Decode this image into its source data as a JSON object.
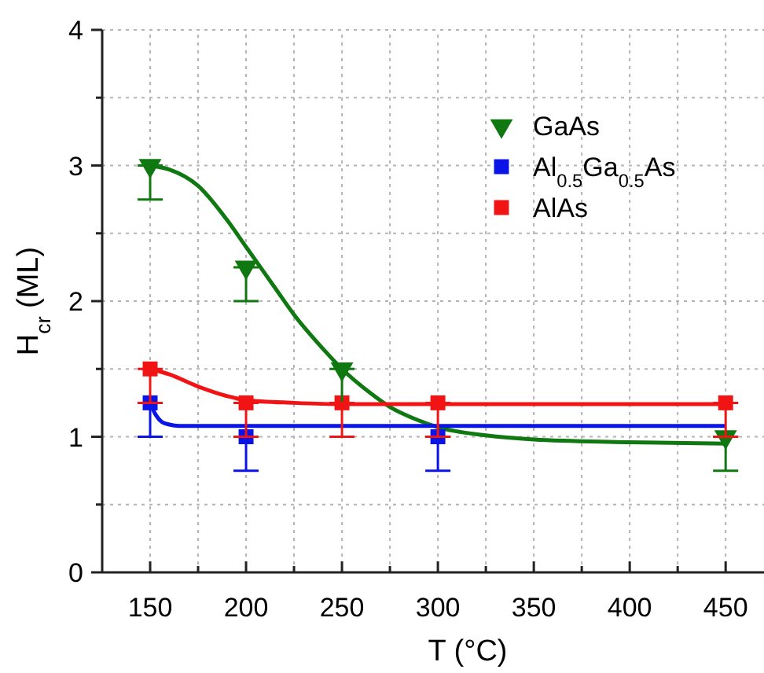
{
  "chart_data": {
    "type": "scatter",
    "xlabel": "T (°C)",
    "ylabel": "H$_{cr}$ (ML)",
    "xlim": [
      125,
      470
    ],
    "ylim": [
      0,
      4
    ],
    "xticks": [
      150,
      {
        "value": 175,
        "label": null
      },
      200,
      {
        "value": 225,
        "label": null
      },
      250,
      {
        "value": 275,
        "label": null
      },
      300,
      {
        "value": 325,
        "label": null
      },
      350,
      {
        "value": 375,
        "label": null
      },
      400,
      {
        "value": 425,
        "label": null
      },
      450
    ],
    "yticks": [
      0,
      {
        "value": 0.5,
        "label": null
      },
      1,
      {
        "value": 1.5,
        "label": null
      },
      2,
      {
        "value": 2.5,
        "label": null
      },
      3,
      {
        "value": 3.5,
        "label": null
      },
      4
    ],
    "grid": true,
    "legend": "top right",
    "series": [
      {
        "name": "GaAs",
        "marker": "triangle",
        "color": "#107810",
        "x": [
          150,
          200,
          250,
          450
        ],
        "values": [
          3.0,
          2.25,
          1.5,
          1.0
        ],
        "errors": [
          [
            2.75,
            3.0
          ],
          [
            2.0,
            2.25
          ],
          [
            1.25,
            1.5
          ],
          [
            0.75,
            1.0
          ]
        ]
      },
      {
        "name": "Al$_{0.5}$Ga$_{0.5}$As",
        "marker": "square",
        "color": "#0a14e6",
        "x": [
          150,
          200,
          300
        ],
        "values": [
          1.25,
          1.0,
          1.0
        ],
        "errors": [
          [
            1.0,
            1.25
          ],
          [
            0.75,
            1.0
          ],
          [
            0.75,
            1.0
          ]
        ]
      },
      {
        "name": "AlAs",
        "marker": "square",
        "color": "#f01414",
        "x": [
          150,
          200,
          250,
          300,
          450
        ],
        "values": [
          1.5,
          1.25,
          1.25,
          1.25,
          1.25
        ],
        "errors": [
          [
            1.25,
            1.5
          ],
          [
            1.0,
            1.25
          ],
          [
            1.0,
            1.25
          ],
          [
            1.0,
            1.25
          ],
          [
            1.0,
            1.25
          ]
        ]
      },
      {
        "type": "line",
        "color": "#107810",
        "x": [
          150,
          160,
          175,
          190,
          200,
          215,
          225,
          240,
          250,
          265,
          275,
          290,
          300,
          325,
          350,
          400,
          450
        ],
        "values": [
          3.0,
          2.97,
          2.85,
          2.6,
          2.4,
          2.1,
          1.9,
          1.65,
          1.5,
          1.32,
          1.22,
          1.12,
          1.07,
          1.01,
          0.98,
          0.96,
          0.95
        ]
      },
      {
        "type": "line",
        "color": "#0a14e6",
        "x": [
          150,
          153,
          156,
          160,
          165,
          200,
          450
        ],
        "values": [
          1.25,
          1.16,
          1.11,
          1.09,
          1.08,
          1.08,
          1.08
        ]
      },
      {
        "type": "line",
        "color": "#f01414",
        "x": [
          150,
          160,
          175,
          190,
          200,
          225,
          250,
          450
        ],
        "values": [
          1.5,
          1.46,
          1.37,
          1.3,
          1.27,
          1.25,
          1.24,
          1.24
        ]
      }
    ]
  }
}
